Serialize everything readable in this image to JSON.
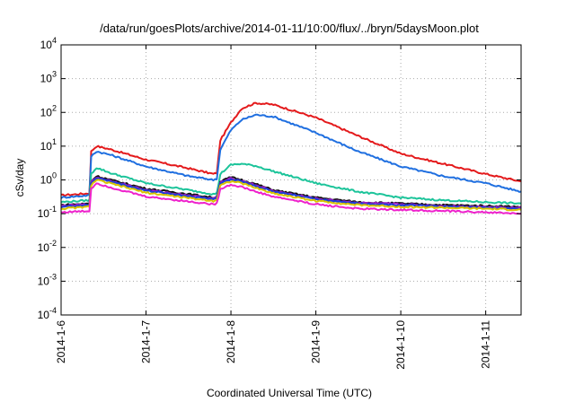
{
  "chart_data": {
    "type": "line",
    "title": "/data/run/goesPlots/archive/2014-01-11/10:00/flux/../bryn/5daysMoon.plot",
    "xlabel": "Coordinated Universal Time (UTC)",
    "ylabel": "cSv/day",
    "yscale": "log",
    "ylim": [
      0.0001,
      10000
    ],
    "xlim": [
      "2014-01-06T00:00",
      "2014-01-11T10:00"
    ],
    "x_ticks": [
      "2014-1-6",
      "2014-1-7",
      "2014-1-8",
      "2014-1-9",
      "2014-1-10",
      "2014-1-11"
    ],
    "y_ticks": [
      {
        "base": "10",
        "exp": "-4",
        "value": 0.0001
      },
      {
        "base": "10",
        "exp": "-3",
        "value": 0.001
      },
      {
        "base": "10",
        "exp": "-2",
        "value": 0.01
      },
      {
        "base": "10",
        "exp": "-1",
        "value": 0.1
      },
      {
        "base": "10",
        "exp": "0",
        "value": 1
      },
      {
        "base": "10",
        "exp": "1",
        "value": 10
      },
      {
        "base": "10",
        "exp": "2",
        "value": 100
      },
      {
        "base": "10",
        "exp": "3",
        "value": 1000
      },
      {
        "base": "10",
        "exp": "4",
        "value": 10000
      }
    ],
    "grid": true,
    "series": [
      {
        "color": "#e41a1c",
        "x": [
          "2014-01-06T00:00",
          "2014-01-06T08:00",
          "2014-01-06T08:30",
          "2014-01-06T10:00",
          "2014-01-06T14:00",
          "2014-01-07T00:00",
          "2014-01-07T12:00",
          "2014-01-07T19:00",
          "2014-01-07T20:00",
          "2014-01-07T21:00",
          "2014-01-08T00:00",
          "2014-01-08T03:00",
          "2014-01-08T07:00",
          "2014-01-08T12:00",
          "2014-01-09T00:00",
          "2014-01-09T12:00",
          "2014-01-10T00:00",
          "2014-01-10T12:00",
          "2014-01-11T00:00",
          "2014-01-11T10:00"
        ],
        "y": [
          0.35,
          0.4,
          7,
          10,
          8,
          4,
          2.2,
          1.5,
          1.6,
          15,
          50,
          130,
          190,
          170,
          70,
          20,
          6,
          3,
          1.5,
          0.9
        ]
      },
      {
        "color": "#1f6fe0",
        "x": [
          "2014-01-06T00:00",
          "2014-01-06T08:00",
          "2014-01-06T08:30",
          "2014-01-06T10:00",
          "2014-01-06T14:00",
          "2014-01-07T00:00",
          "2014-01-07T12:00",
          "2014-01-07T19:00",
          "2014-01-07T20:00",
          "2014-01-07T21:00",
          "2014-01-08T00:00",
          "2014-01-08T03:00",
          "2014-01-08T07:00",
          "2014-01-08T12:00",
          "2014-01-09T00:00",
          "2014-01-09T12:00",
          "2014-01-10T00:00",
          "2014-01-10T12:00",
          "2014-01-11T00:00",
          "2014-01-11T10:00"
        ],
        "y": [
          0.3,
          0.35,
          5,
          7,
          5.5,
          2.5,
          1.3,
          1,
          1.1,
          8,
          30,
          60,
          85,
          75,
          25,
          7,
          2.5,
          1.3,
          0.8,
          0.45
        ]
      },
      {
        "color": "#1cc49a",
        "x": [
          "2014-01-06T00:00",
          "2014-01-06T08:00",
          "2014-01-06T08:30",
          "2014-01-06T10:00",
          "2014-01-06T14:00",
          "2014-01-07T00:00",
          "2014-01-07T12:00",
          "2014-01-07T19:00",
          "2014-01-07T20:00",
          "2014-01-07T21:00",
          "2014-01-08T00:00",
          "2014-01-08T03:00",
          "2014-01-08T07:00",
          "2014-01-08T12:00",
          "2014-01-09T00:00",
          "2014-01-09T12:00",
          "2014-01-10T00:00",
          "2014-01-10T12:00",
          "2014-01-11T00:00",
          "2014-01-11T10:00"
        ],
        "y": [
          0.22,
          0.25,
          1.5,
          2.3,
          1.6,
          0.8,
          0.5,
          0.38,
          0.4,
          1.5,
          2.8,
          3,
          2.6,
          1.8,
          0.8,
          0.45,
          0.3,
          0.25,
          0.22,
          0.2
        ]
      },
      {
        "color": "#111111",
        "x": [
          "2014-01-06T00:00",
          "2014-01-06T08:00",
          "2014-01-06T08:30",
          "2014-01-06T10:00",
          "2014-01-06T14:00",
          "2014-01-07T00:00",
          "2014-01-07T12:00",
          "2014-01-07T19:00",
          "2014-01-07T20:00",
          "2014-01-07T21:00",
          "2014-01-08T00:00",
          "2014-01-08T03:00",
          "2014-01-08T07:00",
          "2014-01-08T12:00",
          "2014-01-09T00:00",
          "2014-01-09T12:00",
          "2014-01-10T00:00",
          "2014-01-10T12:00",
          "2014-01-11T00:00",
          "2014-01-11T10:00"
        ],
        "y": [
          0.18,
          0.2,
          0.9,
          1.3,
          1,
          0.55,
          0.38,
          0.3,
          0.32,
          0.9,
          1.2,
          1,
          0.75,
          0.5,
          0.3,
          0.22,
          0.2,
          0.18,
          0.17,
          0.16
        ]
      },
      {
        "color": "#9a1cc4",
        "x": [
          "2014-01-06T00:00",
          "2014-01-06T08:00",
          "2014-01-06T08:30",
          "2014-01-06T10:00",
          "2014-01-06T14:00",
          "2014-01-07T00:00",
          "2014-01-07T12:00",
          "2014-01-07T19:00",
          "2014-01-07T20:00",
          "2014-01-07T21:00",
          "2014-01-08T00:00",
          "2014-01-08T03:00",
          "2014-01-08T07:00",
          "2014-01-08T12:00",
          "2014-01-09T00:00",
          "2014-01-09T12:00",
          "2014-01-10T00:00",
          "2014-01-10T12:00",
          "2014-01-11T00:00",
          "2014-01-11T10:00"
        ],
        "y": [
          0.17,
          0.19,
          0.85,
          1.2,
          0.95,
          0.5,
          0.35,
          0.28,
          0.3,
          0.85,
          1.1,
          0.95,
          0.7,
          0.47,
          0.28,
          0.21,
          0.19,
          0.17,
          0.16,
          0.15
        ]
      },
      {
        "color": "#1a3fd6",
        "x": [
          "2014-01-06T00:00",
          "2014-01-06T08:00",
          "2014-01-06T08:30",
          "2014-01-06T10:00",
          "2014-01-06T14:00",
          "2014-01-07T00:00",
          "2014-01-07T12:00",
          "2014-01-07T19:00",
          "2014-01-07T20:00",
          "2014-01-07T21:00",
          "2014-01-08T00:00",
          "2014-01-08T03:00",
          "2014-01-08T07:00",
          "2014-01-08T12:00",
          "2014-01-09T00:00",
          "2014-01-09T12:00",
          "2014-01-10T00:00",
          "2014-01-10T12:00",
          "2014-01-11T00:00",
          "2014-01-11T10:00"
        ],
        "y": [
          0.16,
          0.18,
          0.8,
          1.15,
          0.9,
          0.48,
          0.33,
          0.27,
          0.29,
          0.8,
          1.05,
          0.9,
          0.66,
          0.45,
          0.27,
          0.2,
          0.18,
          0.16,
          0.15,
          0.14
        ]
      },
      {
        "color": "#d9c400",
        "x": [
          "2014-01-06T00:00",
          "2014-01-06T08:00",
          "2014-01-06T08:30",
          "2014-01-06T10:00",
          "2014-01-06T14:00",
          "2014-01-07T00:00",
          "2014-01-07T12:00",
          "2014-01-07T19:00",
          "2014-01-07T20:00",
          "2014-01-07T21:00",
          "2014-01-08T00:00",
          "2014-01-08T03:00",
          "2014-01-08T07:00",
          "2014-01-08T12:00",
          "2014-01-09T00:00",
          "2014-01-09T12:00",
          "2014-01-10T00:00",
          "2014-01-10T12:00",
          "2014-01-11T00:00",
          "2014-01-11T10:00"
        ],
        "y": [
          0.14,
          0.16,
          0.7,
          1,
          0.78,
          0.42,
          0.29,
          0.24,
          0.26,
          0.7,
          0.92,
          0.8,
          0.58,
          0.4,
          0.24,
          0.18,
          0.16,
          0.15,
          0.14,
          0.13
        ]
      },
      {
        "color": "#ee22cc",
        "x": [
          "2014-01-06T00:00",
          "2014-01-06T08:00",
          "2014-01-06T08:30",
          "2014-01-06T10:00",
          "2014-01-06T14:00",
          "2014-01-07T00:00",
          "2014-01-07T12:00",
          "2014-01-07T19:00",
          "2014-01-07T20:00",
          "2014-01-07T21:00",
          "2014-01-08T00:00",
          "2014-01-08T03:00",
          "2014-01-08T07:00",
          "2014-01-08T12:00",
          "2014-01-09T00:00",
          "2014-01-09T12:00",
          "2014-01-10T00:00",
          "2014-01-10T12:00",
          "2014-01-11T00:00",
          "2014-01-11T10:00"
        ],
        "y": [
          0.11,
          0.12,
          0.55,
          0.8,
          0.6,
          0.32,
          0.23,
          0.19,
          0.2,
          0.55,
          0.72,
          0.62,
          0.45,
          0.32,
          0.19,
          0.14,
          0.13,
          0.12,
          0.11,
          0.1
        ]
      }
    ]
  }
}
